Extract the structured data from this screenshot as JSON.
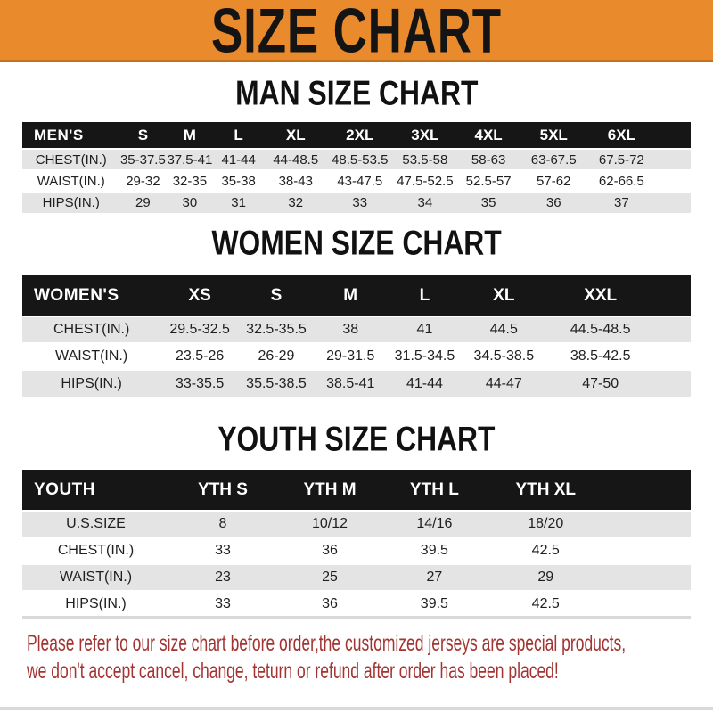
{
  "banner": {
    "title": "SIZE CHART"
  },
  "colors": {
    "orange": "#E98A2D",
    "edge": "#C4711C",
    "bar": "#161616",
    "gray": "#E4E4E4",
    "red": "#A23432"
  },
  "sections": [
    {
      "id": "men",
      "heading": "MAN SIZE CHART",
      "table": {
        "title": "MEN'S",
        "columns": [
          "S",
          "M",
          "L",
          "XL",
          "2XL",
          "3XL",
          "4XL",
          "5XL",
          "6XL"
        ],
        "rows": [
          {
            "label": "CHEST(IN.)",
            "values": [
              "35-37.5",
              "37.5-41",
              "41-44",
              "44-48.5",
              "48.5-53.5",
              "53.5-58",
              "58-63",
              "63-67.5",
              "67.5-72"
            ]
          },
          {
            "label": "WAIST(IN.)",
            "values": [
              "29-32",
              "32-35",
              "35-38",
              "38-43",
              "43-47.5",
              "47.5-52.5",
              "52.5-57",
              "57-62",
              "62-66.5"
            ]
          },
          {
            "label": "HIPS(IN.)",
            "values": [
              "29",
              "30",
              "31",
              "32",
              "33",
              "34",
              "35",
              "36",
              "37"
            ]
          }
        ]
      }
    },
    {
      "id": "women",
      "heading": "WOMEN SIZE CHART",
      "table": {
        "title": "WOMEN'S",
        "columns": [
          "XS",
          "S",
          "M",
          "L",
          "XL",
          "XXL"
        ],
        "rows": [
          {
            "label": "CHEST(IN.)",
            "values": [
              "29.5-32.5",
              "32.5-35.5",
              "38",
              "41",
              "44.5",
              "44.5-48.5"
            ]
          },
          {
            "label": "WAIST(IN.)",
            "values": [
              "23.5-26",
              "26-29",
              "29-31.5",
              "31.5-34.5",
              "34.5-38.5",
              "38.5-42.5"
            ]
          },
          {
            "label": "HIPS(IN.)",
            "values": [
              "33-35.5",
              "35.5-38.5",
              "38.5-41",
              "41-44",
              "44-47",
              "47-50"
            ]
          }
        ]
      }
    },
    {
      "id": "youth",
      "heading": "YOUTH SIZE CHART",
      "table": {
        "title": "YOUTH",
        "columns": [
          "YTH S",
          "YTH M",
          "YTH L",
          "YTH XL"
        ],
        "rows": [
          {
            "label": "U.S.SIZE",
            "values": [
              "8",
              "10/12",
              "14/16",
              "18/20"
            ]
          },
          {
            "label": "CHEST(IN.)",
            "values": [
              "33",
              "36",
              "39.5",
              "42.5"
            ]
          },
          {
            "label": "WAIST(IN.)",
            "values": [
              "23",
              "25",
              "27",
              "29"
            ]
          },
          {
            "label": "HIPS(IN.)",
            "values": [
              "33",
              "36",
              "39.5",
              "42.5"
            ]
          }
        ]
      }
    }
  ],
  "notice": {
    "line1": "Please refer to our size chart before order,the customized jerseys are special products,",
    "line2": "we don't accept cancel, change, teturn or refund after order has been placed!"
  }
}
